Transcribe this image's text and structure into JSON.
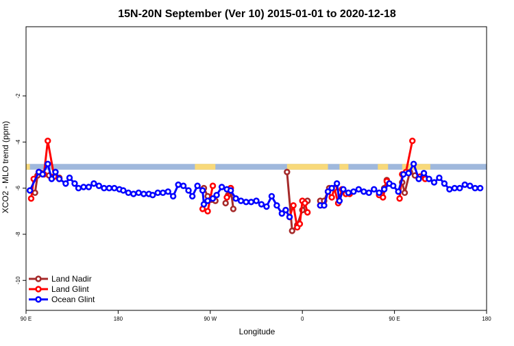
{
  "colors": {
    "land_nadir": "#a52a2a",
    "land_glint": "#ff0000",
    "ocean_glint": "#0000ff",
    "ocean_band": "#9fb8dc",
    "land_band": "#f8d97a"
  },
  "chart_data": {
    "type": "line",
    "title": "15N-20N September (Ver 10)   2015-01-01 to 2020-12-18",
    "xlabel": "Longitude",
    "ylabel": "XCO2 - MLO trend (ppm)",
    "xlim": [
      0,
      360
    ],
    "ylim": [
      -11.3,
      1.0
    ],
    "x_ticks": [
      {
        "value": 0,
        "label": "90 E"
      },
      {
        "value": 72,
        "label": "180"
      },
      {
        "value": 144,
        "label": "90 W"
      },
      {
        "value": 216,
        "label": "0"
      },
      {
        "value": 288,
        "label": "90 E"
      },
      {
        "value": 360,
        "label": "180"
      }
    ],
    "y_ticks": [
      -10,
      -8,
      -6,
      -4,
      -2
    ],
    "grid": false,
    "legend_position": "bottom-left",
    "surface_band": {
      "y_range": [
        -5.2,
        -4.95
      ],
      "land_segments": [
        [
          0,
          3
        ],
        [
          132,
          148
        ],
        [
          204,
          236
        ],
        [
          245,
          252
        ],
        [
          275,
          283
        ],
        [
          294,
          316
        ]
      ]
    },
    "series": [
      {
        "name": "Land Nadir",
        "color": "#a52a2a",
        "segments": [
          [
            [
              7,
              -6.2
            ],
            [
              9,
              -5.45
            ],
            [
              12,
              -5.35
            ],
            [
              18,
              -5.45
            ],
            [
              22,
              -5.5
            ],
            [
              26,
              -5.55
            ]
          ],
          [
            [
              139,
              -6.0
            ],
            [
              142,
              -6.35
            ],
            [
              145,
              -6.5
            ],
            [
              148,
              -6.55
            ]
          ],
          [
            [
              156,
              -6.65
            ],
            [
              158,
              -6.3
            ],
            [
              160,
              -6.0
            ],
            [
              162,
              -6.9
            ]
          ],
          [
            [
              204,
              -5.3
            ],
            [
              208,
              -7.85
            ],
            [
              212,
              -7.6
            ],
            [
              216,
              -6.95
            ],
            [
              220,
              -6.55
            ]
          ],
          [
            [
              230,
              -6.55
            ],
            [
              233,
              -6.55
            ],
            [
              237,
              -6.0
            ]
          ],
          [
            [
              278,
              -6.3
            ],
            [
              280,
              -6.0
            ],
            [
              282,
              -5.65
            ]
          ],
          [
            [
              294,
              -5.75
            ],
            [
              296,
              -6.2
            ],
            [
              300,
              -5.3
            ],
            [
              304,
              -5.45
            ],
            [
              308,
              -5.5
            ],
            [
              312,
              -5.55
            ]
          ]
        ]
      },
      {
        "name": "Land Glint",
        "color": "#ff0000",
        "segments": [
          [
            [
              4,
              -6.45
            ],
            [
              6,
              -5.6
            ],
            [
              10,
              -5.3
            ],
            [
              14,
              -5.4
            ],
            [
              17,
              -3.95
            ],
            [
              22,
              -5.5
            ],
            [
              26,
              -5.6
            ]
          ],
          [
            [
              138,
              -6.9
            ],
            [
              142,
              -7.0
            ],
            [
              146,
              -5.9
            ]
          ],
          [
            [
              157,
              -6.4
            ],
            [
              160,
              -6.0
            ]
          ],
          [
            [
              203,
              -6.95
            ],
            [
              206,
              -7.25
            ],
            [
              209,
              -6.75
            ],
            [
              212,
              -7.7
            ],
            [
              214,
              -7.55
            ],
            [
              216,
              -6.55
            ],
            [
              218,
              -6.65
            ],
            [
              220,
              -7.05
            ]
          ],
          [
            [
              230,
              -6.75
            ],
            [
              233,
              -6.75
            ],
            [
              236,
              -6.15
            ],
            [
              239,
              -6.4
            ],
            [
              241,
              -6.0
            ],
            [
              244,
              -6.65
            ],
            [
              247,
              -6.05
            ],
            [
              250,
              -6.25
            ],
            [
              253,
              -6.25
            ]
          ],
          [
            [
              276,
              -6.3
            ],
            [
              279,
              -6.4
            ],
            [
              282,
              -5.7
            ]
          ],
          [
            [
              292,
              -6.45
            ],
            [
              294,
              -5.4
            ],
            [
              297,
              -5.3
            ],
            [
              302,
              -3.95
            ]
          ],
          [
            [
              308,
              -5.5
            ],
            [
              312,
              -5.6
            ]
          ]
        ]
      },
      {
        "name": "Ocean Glint",
        "color": "#0000ff",
        "segments": [
          [
            [
              3,
              -6.1
            ],
            [
              10,
              -5.3
            ],
            [
              13,
              -5.4
            ],
            [
              17,
              -4.95
            ],
            [
              20,
              -5.6
            ],
            [
              23,
              -5.3
            ],
            [
              26,
              -5.6
            ],
            [
              31,
              -5.8
            ],
            [
              34,
              -5.55
            ],
            [
              38,
              -5.8
            ],
            [
              41,
              -6.0
            ],
            [
              45,
              -5.95
            ],
            [
              49,
              -5.95
            ],
            [
              53,
              -5.8
            ],
            [
              57,
              -5.9
            ],
            [
              61,
              -6.0
            ],
            [
              65,
              -6.0
            ],
            [
              69,
              -6.0
            ],
            [
              73,
              -6.05
            ],
            [
              76,
              -6.1
            ],
            [
              80,
              -6.2
            ],
            [
              84,
              -6.25
            ],
            [
              88,
              -6.2
            ],
            [
              92,
              -6.25
            ],
            [
              96,
              -6.25
            ],
            [
              99,
              -6.3
            ],
            [
              103,
              -6.2
            ],
            [
              107,
              -6.2
            ],
            [
              111,
              -6.15
            ],
            [
              115,
              -6.35
            ],
            [
              119,
              -5.85
            ],
            [
              123,
              -5.9
            ],
            [
              127,
              -6.1
            ],
            [
              130,
              -6.35
            ],
            [
              134,
              -5.9
            ],
            [
              138,
              -6.1
            ],
            [
              139,
              -6.7
            ],
            [
              142,
              -6.55
            ],
            [
              146,
              -6.45
            ],
            [
              149,
              -6.3
            ],
            [
              153,
              -5.95
            ],
            [
              157,
              -6.05
            ],
            [
              160,
              -6.1
            ],
            [
              164,
              -6.45
            ],
            [
              168,
              -6.55
            ],
            [
              172,
              -6.6
            ],
            [
              176,
              -6.6
            ],
            [
              180,
              -6.55
            ],
            [
              184,
              -6.7
            ],
            [
              188,
              -6.8
            ],
            [
              192,
              -6.35
            ],
            [
              196,
              -6.75
            ],
            [
              200,
              -7.1
            ],
            [
              203,
              -6.95
            ],
            [
              206,
              -7.25
            ]
          ],
          [
            [
              230,
              -6.75
            ],
            [
              233,
              -6.75
            ],
            [
              236,
              -6.15
            ],
            [
              239,
              -6.0
            ],
            [
              243,
              -5.8
            ],
            [
              245,
              -6.55
            ],
            [
              248,
              -6.05
            ],
            [
              252,
              -6.2
            ],
            [
              256,
              -6.15
            ],
            [
              260,
              -6.05
            ],
            [
              264,
              -6.15
            ],
            [
              268,
              -6.2
            ],
            [
              272,
              -6.05
            ],
            [
              276,
              -6.2
            ],
            [
              280,
              -6.05
            ],
            [
              284,
              -5.8
            ],
            [
              287,
              -5.9
            ],
            [
              291,
              -6.15
            ],
            [
              295,
              -5.4
            ],
            [
              299,
              -5.35
            ],
            [
              303,
              -4.95
            ],
            [
              307,
              -5.6
            ],
            [
              311,
              -5.35
            ],
            [
              315,
              -5.6
            ],
            [
              319,
              -5.75
            ],
            [
              323,
              -5.55
            ],
            [
              327,
              -5.8
            ],
            [
              331,
              -6.05
            ],
            [
              335,
              -6.0
            ],
            [
              339,
              -6.0
            ],
            [
              343,
              -5.85
            ],
            [
              347,
              -5.9
            ],
            [
              351,
              -6.0
            ],
            [
              355,
              -6.0
            ]
          ]
        ]
      }
    ]
  }
}
